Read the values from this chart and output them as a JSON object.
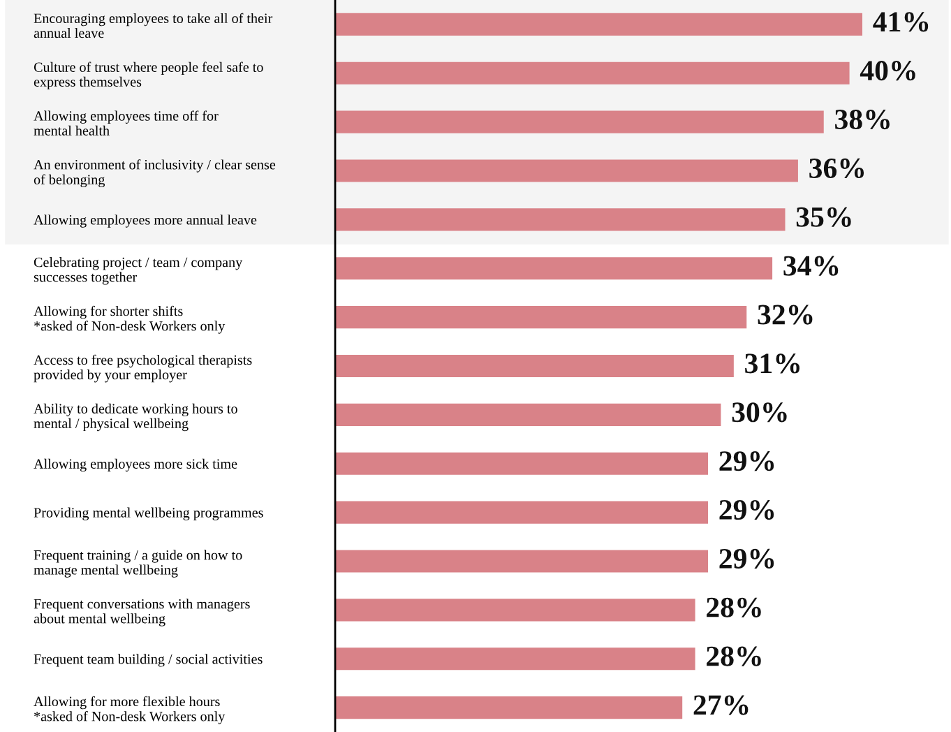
{
  "chart_data": {
    "type": "bar",
    "orientation": "horizontal",
    "categories": [
      "Encouraging employees to take all of their\nannual leave",
      "Culture of trust where people feel safe to\nexpress themselves",
      "Allowing employees time off for\nmental health",
      "An environment of inclusivity / clear sense\nof belonging",
      "Allowing employees more annual leave",
      "Celebrating project / team / company\nsuccesses together",
      "Allowing for shorter shifts\n*asked of Non-desk Workers only",
      "Access to free psychological therapists\nprovided by your employer",
      "Ability to dedicate working hours to\nmental / physical wellbeing",
      "Allowing employees more sick time",
      "Providing mental wellbeing programmes",
      "Frequent training / a guide on how to\nmanage mental wellbeing",
      "Frequent conversations with managers\nabout mental wellbeing",
      "Frequent team building / social activities",
      "Allowing for more flexible hours\n*asked of Non-desk Workers only"
    ],
    "values": [
      41,
      40,
      38,
      36,
      35,
      34,
      32,
      31,
      30,
      29,
      29,
      29,
      28,
      28,
      27
    ],
    "value_labels": [
      "41%",
      "40%",
      "38%",
      "36%",
      "35%",
      "34%",
      "32%",
      "31%",
      "30%",
      "29%",
      "29%",
      "29%",
      "28%",
      "28%",
      "27%"
    ],
    "color": "#d98288",
    "tick_labels": "y",
    "grid": false,
    "bands": [
      {
        "axis": "y",
        "from": "Encouraging employees to take all of their\nannual leave",
        "to": "Allowing employees more annual leave",
        "color": "#f4f4f4"
      }
    ]
  }
}
